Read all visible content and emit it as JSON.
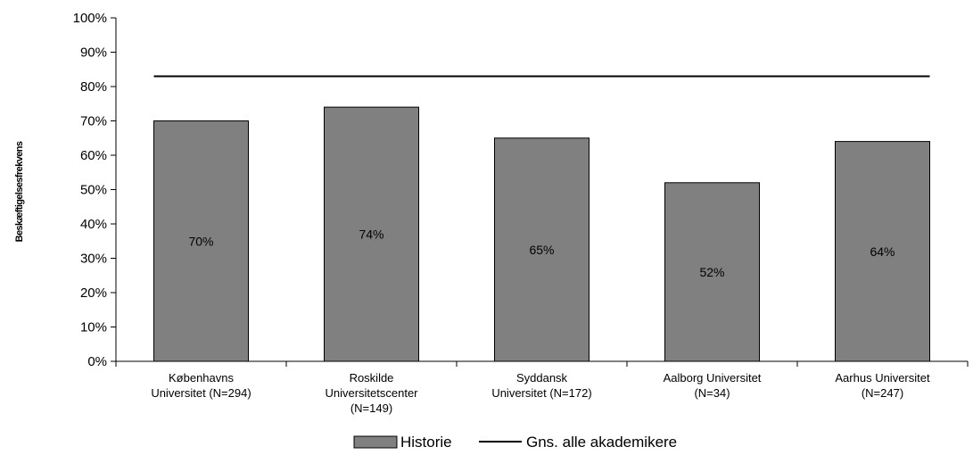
{
  "chart_data": {
    "type": "bar",
    "categories": [
      [
        "Københavns",
        "Universitet (N=294)"
      ],
      [
        "Roskilde",
        "Universitetscenter",
        "(N=149)"
      ],
      [
        "Syddansk",
        "Universitet (N=172)"
      ],
      [
        "Aalborg Universitet",
        "(N=34)"
      ],
      [
        "Aarhus Universitet",
        "(N=247)"
      ]
    ],
    "series": [
      {
        "name": "Historie",
        "values": [
          70,
          74,
          65,
          52,
          64
        ],
        "data_labels": [
          "70%",
          "74%",
          "65%",
          "52%",
          "64%"
        ],
        "color": "#808080"
      }
    ],
    "reference_line": {
      "name": "Gns. alle akademikere",
      "value": 83,
      "color": "#000000"
    },
    "ylabel": "Beskæftigelsesfrekvens",
    "ylim": [
      0,
      100
    ],
    "yticks": [
      "0%",
      "10%",
      "20%",
      "30%",
      "40%",
      "50%",
      "60%",
      "70%",
      "80%",
      "90%",
      "100%"
    ],
    "grid": false,
    "legend_position": "bottom"
  }
}
